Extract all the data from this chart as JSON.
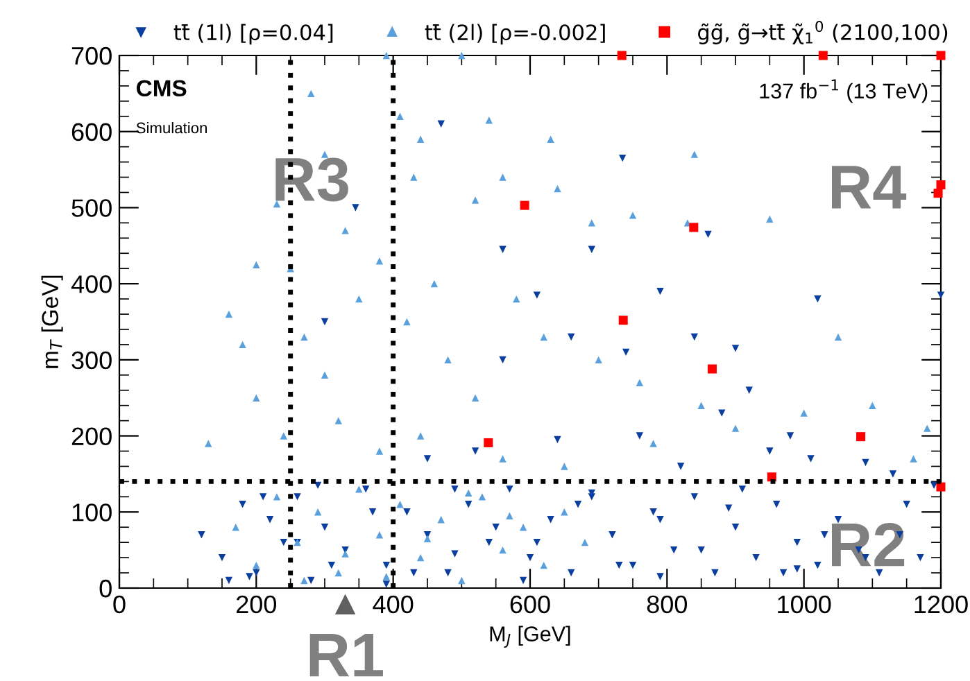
{
  "chart_data": {
    "type": "scatter",
    "xlabel": "M$_{J}$ [GeV]",
    "ylabel": "m$_{T}$ [GeV]",
    "xlim": [
      0,
      1200
    ],
    "ylim": [
      0,
      700
    ],
    "xticks": [
      0,
      200,
      400,
      600,
      800,
      1000,
      1200
    ],
    "yticks": [
      0,
      100,
      200,
      300,
      400,
      500,
      600,
      700
    ],
    "grid": false,
    "legend": "top",
    "series": [
      {
        "name": "tt̄ (1l) [ρ=0.04]",
        "color": "#0a3fa0",
        "marker": "triangle_down",
        "x": [
          470,
          735,
          345,
          560,
          690,
          860,
          610,
          790,
          840,
          1020,
          660,
          560,
          740,
          920,
          880,
          1010,
          1090,
          950,
          760,
          640,
          520,
          450,
          1130,
          820,
          300,
          900,
          980,
          1200,
          120,
          150,
          180,
          200,
          220,
          240,
          260,
          280,
          300,
          330,
          360,
          390,
          420,
          450,
          480,
          510,
          540,
          570,
          600,
          630,
          660,
          690,
          720,
          750,
          780,
          810,
          840,
          870,
          900,
          930,
          960,
          990,
          1020,
          1050,
          1080,
          1110,
          1140,
          1170,
          160,
          210,
          260,
          310,
          370,
          430,
          490,
          550,
          610,
          670,
          730,
          790,
          850,
          910,
          970,
          1030,
          1090,
          1150,
          190,
          290,
          390,
          490,
          590,
          690,
          790,
          890,
          990,
          1190
        ],
        "values": [
          610,
          565,
          500,
          445,
          445,
          465,
          385,
          390,
          330,
          380,
          330,
          300,
          310,
          260,
          230,
          170,
          165,
          180,
          200,
          195,
          180,
          170,
          150,
          160,
          350,
          315,
          200,
          385,
          70,
          40,
          110,
          20,
          90,
          60,
          120,
          10,
          80,
          50,
          130,
          30,
          100,
          70,
          20,
          110,
          60,
          130,
          40,
          90,
          20,
          120,
          70,
          30,
          100,
          50,
          120,
          20,
          80,
          40,
          110,
          60,
          30,
          90,
          50,
          20,
          70,
          40,
          10,
          120,
          60,
          30,
          100,
          20,
          130,
          80,
          60,
          110,
          30,
          90,
          50,
          130,
          20,
          70,
          40,
          110,
          15,
          135,
          5,
          45,
          10,
          125,
          15,
          105,
          25,
          135
        ]
      },
      {
        "name": "tt̄ (2l) [ρ=-0.002]",
        "color": "#5aa0dc",
        "marker": "triangle",
        "x": [
          390,
          500,
          280,
          410,
          540,
          630,
          440,
          300,
          430,
          560,
          840,
          640,
          520,
          230,
          750,
          690,
          830,
          950,
          160,
          180,
          130,
          200,
          250,
          330,
          380,
          270,
          350,
          300,
          420,
          460,
          480,
          520,
          580,
          620,
          700,
          760,
          850,
          900,
          1000,
          1100,
          200,
          240,
          320,
          380,
          440,
          560,
          650,
          780,
          1050,
          1180,
          1160,
          170,
          200,
          230,
          260,
          290,
          320,
          350,
          380,
          410,
          440,
          470,
          500,
          530,
          560,
          590,
          620,
          650,
          680,
          270,
          330,
          390,
          450,
          510,
          570
        ],
        "values": [
          700,
          700,
          650,
          620,
          615,
          590,
          590,
          570,
          540,
          540,
          570,
          525,
          510,
          505,
          490,
          480,
          480,
          485,
          360,
          320,
          190,
          425,
          420,
          470,
          430,
          330,
          380,
          280,
          350,
          400,
          300,
          250,
          380,
          330,
          300,
          270,
          240,
          210,
          230,
          240,
          250,
          200,
          220,
          180,
          200,
          170,
          160,
          190,
          330,
          210,
          170,
          80,
          30,
          120,
          60,
          100,
          20,
          130,
          70,
          110,
          40,
          90,
          10,
          120,
          50,
          80,
          30,
          100,
          60,
          10,
          45,
          15,
          65,
          125,
          95
        ]
      },
      {
        "name": "g̃g̃, g̃→tt̄ χ̃$_{1}$$^{0}$ (2100,100)",
        "color": "#ff0000",
        "marker": "square",
        "x": [
          734,
          1028,
          1200,
          592,
          839,
          736,
          866,
          539,
          1083,
          953,
          1200,
          1196,
          1200
        ],
        "values": [
          700,
          700,
          700,
          503,
          474,
          352,
          288,
          191,
          199,
          146,
          133,
          519,
          530
        ]
      }
    ],
    "ref_lines": [
      {
        "axis": "x",
        "value": 250,
        "color": "#000000",
        "line_style": "dotted"
      },
      {
        "axis": "x",
        "value": 400,
        "color": "#000000",
        "line_style": "dotted"
      },
      {
        "axis": "y",
        "value": 140,
        "color": "#000000",
        "line_style": "dotted"
      }
    ],
    "annotations": [
      "CMS",
      "Simulation",
      "137 fb$^{−1}$ (13 TeV)",
      "R1",
      "R2",
      "R3",
      "R4"
    ]
  }
}
